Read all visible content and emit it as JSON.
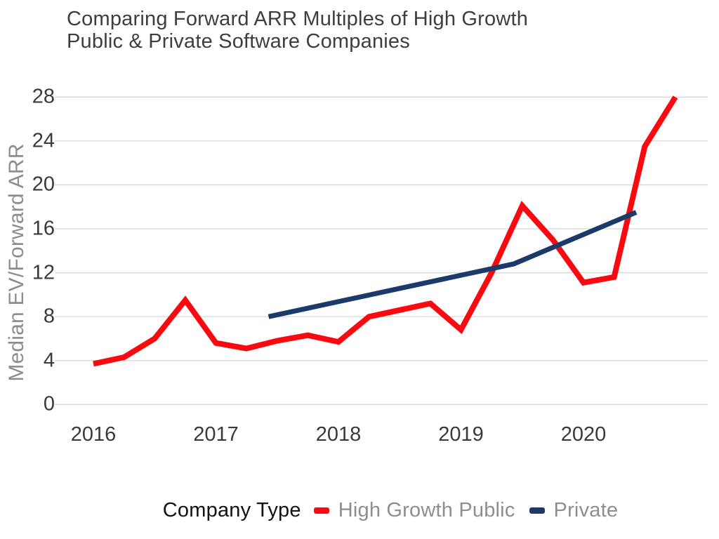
{
  "title": "Comparing Forward ARR Multiples of High Growth\nPublic & Private Software Companies",
  "y_axis_title": "Median EV/Forward ARR",
  "legend": {
    "title": "Company Type",
    "entries": [
      "High Growth Public",
      "Private"
    ]
  },
  "chart_data": {
    "type": "line",
    "title": "Comparing Forward ARR Multiples of High Growth Public & Private Software Companies",
    "xlabel": "",
    "ylabel": "Median EV/Forward ARR",
    "ylim": [
      0,
      28
    ],
    "yticks": [
      0,
      4,
      8,
      12,
      16,
      20,
      24,
      28
    ],
    "xticks": [
      2016,
      2017,
      2018,
      2019,
      2020
    ],
    "grid": "horizontal",
    "legend_position": "bottom",
    "legend_title": "Company Type",
    "colors": {
      "high_growth_public": "#FA0A10",
      "private": "#1B3A69",
      "gridline": "#D8D8D8"
    },
    "series": [
      {
        "name": "High Growth Public",
        "color": "#FA0A10",
        "stroke_width": 8,
        "x": [
          2016.0,
          2016.25,
          2016.5,
          2016.75,
          2017.0,
          2017.25,
          2017.5,
          2017.75,
          2018.0,
          2018.25,
          2018.5,
          2018.75,
          2019.0,
          2019.25,
          2019.5,
          2019.75,
          2020.0,
          2020.25,
          2020.5,
          2020.75
        ],
        "values": [
          3.7,
          4.3,
          6.0,
          9.5,
          5.6,
          5.1,
          5.8,
          6.3,
          5.7,
          8.0,
          8.6,
          9.2,
          6.8,
          12.0,
          18.1,
          15.0,
          11.1,
          11.6,
          23.5,
          28.0
        ]
      },
      {
        "name": "Private",
        "color": "#1B3A69",
        "stroke_width": 7,
        "x": [
          2017.43,
          2018.43,
          2019.43,
          2020.43
        ],
        "values": [
          8.0,
          10.4,
          12.8,
          17.5
        ]
      }
    ]
  }
}
